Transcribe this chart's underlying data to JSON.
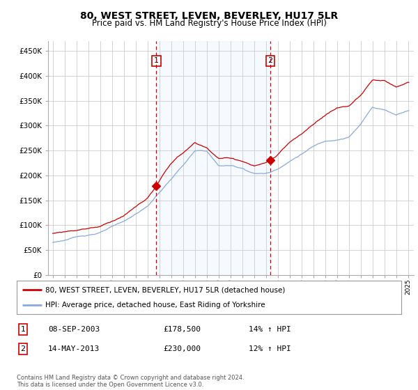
{
  "title": "80, WEST STREET, LEVEN, BEVERLEY, HU17 5LR",
  "subtitle": "Price paid vs. HM Land Registry's House Price Index (HPI)",
  "yticks": [
    0,
    50000,
    100000,
    150000,
    200000,
    250000,
    300000,
    350000,
    400000,
    450000
  ],
  "ytick_labels": [
    "£0",
    "£50K",
    "£100K",
    "£150K",
    "£200K",
    "£250K",
    "£300K",
    "£350K",
    "£400K",
    "£450K"
  ],
  "xlim_start": 1994.6,
  "xlim_end": 2025.5,
  "ylim_min": 0,
  "ylim_max": 470000,
  "xticks": [
    1995,
    1996,
    1997,
    1998,
    1999,
    2000,
    2001,
    2002,
    2003,
    2004,
    2005,
    2006,
    2007,
    2008,
    2009,
    2010,
    2011,
    2012,
    2013,
    2014,
    2015,
    2016,
    2017,
    2018,
    2019,
    2020,
    2021,
    2022,
    2023,
    2024,
    2025
  ],
  "property_color": "#cc0000",
  "hpi_color": "#88aadd",
  "hpi_fill_color": "#ddeeff",
  "marker1_year": 2003.75,
  "marker1_value": 178500,
  "marker2_year": 2013.37,
  "marker2_value": 230000,
  "marker1_label": "1",
  "marker2_label": "2",
  "legend_property": "80, WEST STREET, LEVEN, BEVERLEY, HU17 5LR (detached house)",
  "legend_hpi": "HPI: Average price, detached house, East Riding of Yorkshire",
  "table_row1": [
    "1",
    "08-SEP-2003",
    "£178,500",
    "14% ↑ HPI"
  ],
  "table_row2": [
    "2",
    "14-MAY-2013",
    "£230,000",
    "12% ↑ HPI"
  ],
  "footer": "Contains HM Land Registry data © Crown copyright and database right 2024.\nThis data is licensed under the Open Government Licence v3.0.",
  "background_color": "#ffffff",
  "grid_color": "#cccccc",
  "dashed_line_color": "#cc0000"
}
